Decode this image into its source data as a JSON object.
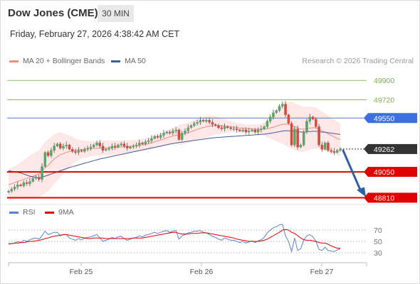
{
  "header": {
    "instrument": "Dow Jones (CME)",
    "interval": "30 MIN",
    "datetime": "Friday, February 27, 2026 4:38:42 AM CET",
    "credit": "Research © 2026 Trading Central"
  },
  "legend": [
    {
      "label": "MA 20 + Bollinger Bands",
      "color": "#f28b82"
    },
    {
      "label": "MA 50",
      "color": "#3f5e9c"
    }
  ],
  "rsi_legend": [
    {
      "label": "RSI",
      "color": "#5b7fd6"
    },
    {
      "label": "9MA",
      "color": "#e00000"
    }
  ],
  "chart_data": [
    {
      "type": "candlestick",
      "x_ticks": [
        "Feb 25",
        "Feb 26",
        "Feb 27"
      ],
      "ylim": [
        48780,
        50020
      ],
      "levels": [
        {
          "value": 49900,
          "label": "49900",
          "kind": "target",
          "color": "#8cc152"
        },
        {
          "value": 49720,
          "label": "49720",
          "kind": "target",
          "color": "#8cc152"
        },
        {
          "value": 49550,
          "label": "49550",
          "kind": "pivot",
          "color": "#4f7fe0"
        },
        {
          "value": 49262,
          "label": "49262",
          "kind": "last",
          "color": "#333333"
        },
        {
          "value": 49050,
          "label": "49050",
          "kind": "support",
          "color": "#e00000"
        },
        {
          "value": 48810,
          "label": "48810",
          "kind": "support",
          "color": "#e00000"
        }
      ],
      "forecast_arrow": {
        "from": 49262,
        "to": 48810,
        "color": "#2f5fa8"
      },
      "closes": [
        48870,
        48890,
        48910,
        48930,
        48920,
        48950,
        48940,
        48960,
        48990,
        49000,
        48980,
        49100,
        49230,
        49200,
        49250,
        49290,
        49310,
        49270,
        49290,
        49300,
        49260,
        49240,
        49230,
        49250,
        49240,
        49260,
        49270,
        49280,
        49300,
        49320,
        49290,
        49250,
        49260,
        49270,
        49290,
        49280,
        49300,
        49310,
        49290,
        49270,
        49280,
        49290,
        49300,
        49320,
        49310,
        49330,
        49340,
        49360,
        49380,
        49370,
        49390,
        49410,
        49420,
        49410,
        49430,
        49440,
        49350,
        49410,
        49430,
        49460,
        49480,
        49500,
        49510,
        49530,
        49520,
        49530,
        49510,
        49490,
        49480,
        49460,
        49450,
        49470,
        49460,
        49450,
        49450,
        49440,
        49430,
        49440,
        49420,
        49430,
        49440,
        49420,
        49440,
        49450,
        49470,
        49520,
        49560,
        49600,
        49620,
        49660,
        49680,
        49580,
        49500,
        49300,
        49450,
        49280,
        49300,
        49420,
        49520,
        49560,
        49540,
        49470,
        49300,
        49260,
        49320,
        49250,
        49240,
        49230,
        49250,
        49262
      ],
      "ma20": [
        48930,
        48940,
        48950,
        48960,
        48970,
        48980,
        48990,
        49000,
        49010,
        49020,
        49030,
        49060,
        49090,
        49110,
        49140,
        49170,
        49190,
        49210,
        49220,
        49230,
        49240,
        49245,
        49250,
        49255,
        49258,
        49260,
        49262,
        49264,
        49266,
        49270,
        49272,
        49272,
        49272,
        49273,
        49274,
        49276,
        49278,
        49281,
        49283,
        49285,
        49287,
        49289,
        49292,
        49296,
        49300,
        49305,
        49312,
        49320,
        49330,
        49338,
        49346,
        49356,
        49366,
        49375,
        49384,
        49390,
        49392,
        49398,
        49405,
        49414,
        49424,
        49434,
        49444,
        49454,
        49462,
        49469,
        49475,
        49478,
        49480,
        49480,
        49478,
        49475,
        49472,
        49468,
        49465,
        49462,
        49459,
        49456,
        49453,
        49451,
        49449,
        49447,
        49446,
        49446,
        49448,
        49452,
        49458,
        49466,
        49474,
        49483,
        49492,
        49494,
        49490,
        49478,
        49472,
        49458,
        49448,
        49446,
        49450,
        49456,
        49460,
        49458,
        49446,
        49430,
        49420,
        49404,
        49390,
        49374,
        49360,
        49348
      ],
      "bb_width": [
        150,
        150,
        150,
        160,
        170,
        180,
        190,
        200,
        210,
        215,
        220,
        230,
        240,
        240,
        235,
        230,
        220,
        210,
        190,
        170,
        150,
        130,
        110,
        95,
        85,
        80,
        75,
        72,
        70,
        70,
        70,
        70,
        70,
        68,
        66,
        65,
        64,
        63,
        62,
        60,
        58,
        56,
        55,
        55,
        55,
        56,
        58,
        60,
        62,
        64,
        66,
        68,
        70,
        72,
        74,
        76,
        90,
        95,
        95,
        95,
        95,
        96,
        98,
        100,
        100,
        98,
        95,
        90,
        85,
        80,
        72,
        65,
        58,
        52,
        48,
        45,
        42,
        40,
        38,
        38,
        40,
        42,
        46,
        52,
        60,
        80,
        100,
        120,
        140,
        160,
        180,
        200,
        210,
        220,
        215,
        220,
        215,
        210,
        205,
        200,
        195,
        190,
        185,
        180,
        175,
        170,
        165,
        160,
        158,
        155
      ],
      "ma50": [
        49060,
        49055,
        49050,
        49045,
        49040,
        49030,
        49020,
        49010,
        49005,
        49000,
        48995,
        49000,
        49010,
        49020,
        49030,
        49040,
        49050,
        49060,
        49070,
        49080,
        49090,
        49098,
        49106,
        49114,
        49122,
        49130,
        49138,
        49146,
        49154,
        49162,
        49170,
        49176,
        49182,
        49188,
        49194,
        49200,
        49206,
        49212,
        49218,
        49224,
        49230,
        49236,
        49242,
        49248,
        49254,
        49260,
        49266,
        49272,
        49278,
        49284,
        49290,
        49296,
        49302,
        49308,
        49313,
        49318,
        49322,
        49326,
        49330,
        49334,
        49338,
        49342,
        49346,
        49350,
        49354,
        49358,
        49362,
        49365,
        49368,
        49370,
        49372,
        49374,
        49376,
        49378,
        49380,
        49382,
        49384,
        49386,
        49388,
        49390,
        49392,
        49394,
        49396,
        49398,
        49400,
        49404,
        49408,
        49413,
        49418,
        49424,
        49430,
        49432,
        49432,
        49428,
        49428,
        49424,
        49420,
        49420,
        49422,
        49425,
        49427,
        49427,
        49424,
        49420,
        49418,
        49414,
        49410,
        49406,
        49402,
        49398
      ]
    },
    {
      "type": "line",
      "title": "RSI",
      "y_ticks": [
        70,
        50,
        30
      ],
      "ylim": [
        20,
        80
      ],
      "series": [
        {
          "name": "RSI",
          "color": "#5b7fd6",
          "values": [
            45,
            46,
            47,
            50,
            48,
            52,
            50,
            53,
            55,
            56,
            54,
            60,
            68,
            62,
            64,
            66,
            66,
            60,
            62,
            62,
            56,
            54,
            52,
            55,
            53,
            56,
            57,
            58,
            60,
            62,
            56,
            50,
            52,
            54,
            57,
            55,
            58,
            59,
            55,
            52,
            54,
            56,
            57,
            60,
            58,
            61,
            62,
            64,
            66,
            64,
            66,
            68,
            69,
            66,
            68,
            69,
            54,
            60,
            62,
            65,
            66,
            68,
            68,
            69,
            66,
            65,
            62,
            59,
            57,
            54,
            52,
            56,
            54,
            52,
            52,
            50,
            48,
            50,
            47,
            49,
            51,
            48,
            51,
            53,
            57,
            65,
            70,
            74,
            76,
            79,
            80,
            60,
            50,
            32,
            56,
            34,
            37,
            52,
            60,
            62,
            58,
            50,
            36,
            34,
            40,
            34,
            33,
            32,
            35,
            37
          ]
        },
        {
          "name": "9MA",
          "color": "#e00000",
          "values": [
            46,
            46,
            47,
            47,
            48,
            48,
            49,
            50,
            50,
            51,
            52,
            53,
            55,
            56,
            58,
            59,
            60,
            61,
            62,
            62,
            61,
            60,
            59,
            58,
            57,
            56,
            55,
            55,
            56,
            56,
            56,
            56,
            55,
            55,
            55,
            55,
            55,
            55,
            55,
            55,
            55,
            56,
            56,
            56,
            56,
            57,
            58,
            59,
            60,
            61,
            62,
            63,
            64,
            65,
            66,
            66,
            64,
            63,
            63,
            63,
            64,
            64,
            64,
            65,
            65,
            65,
            64,
            63,
            62,
            61,
            60,
            59,
            58,
            57,
            56,
            54,
            53,
            52,
            51,
            50,
            50,
            50,
            50,
            51,
            52,
            54,
            57,
            60,
            63,
            66,
            70,
            71,
            70,
            66,
            64,
            60,
            56,
            53,
            52,
            52,
            51,
            50,
            48,
            47,
            47,
            45,
            42,
            40,
            38,
            38
          ]
        }
      ]
    }
  ]
}
